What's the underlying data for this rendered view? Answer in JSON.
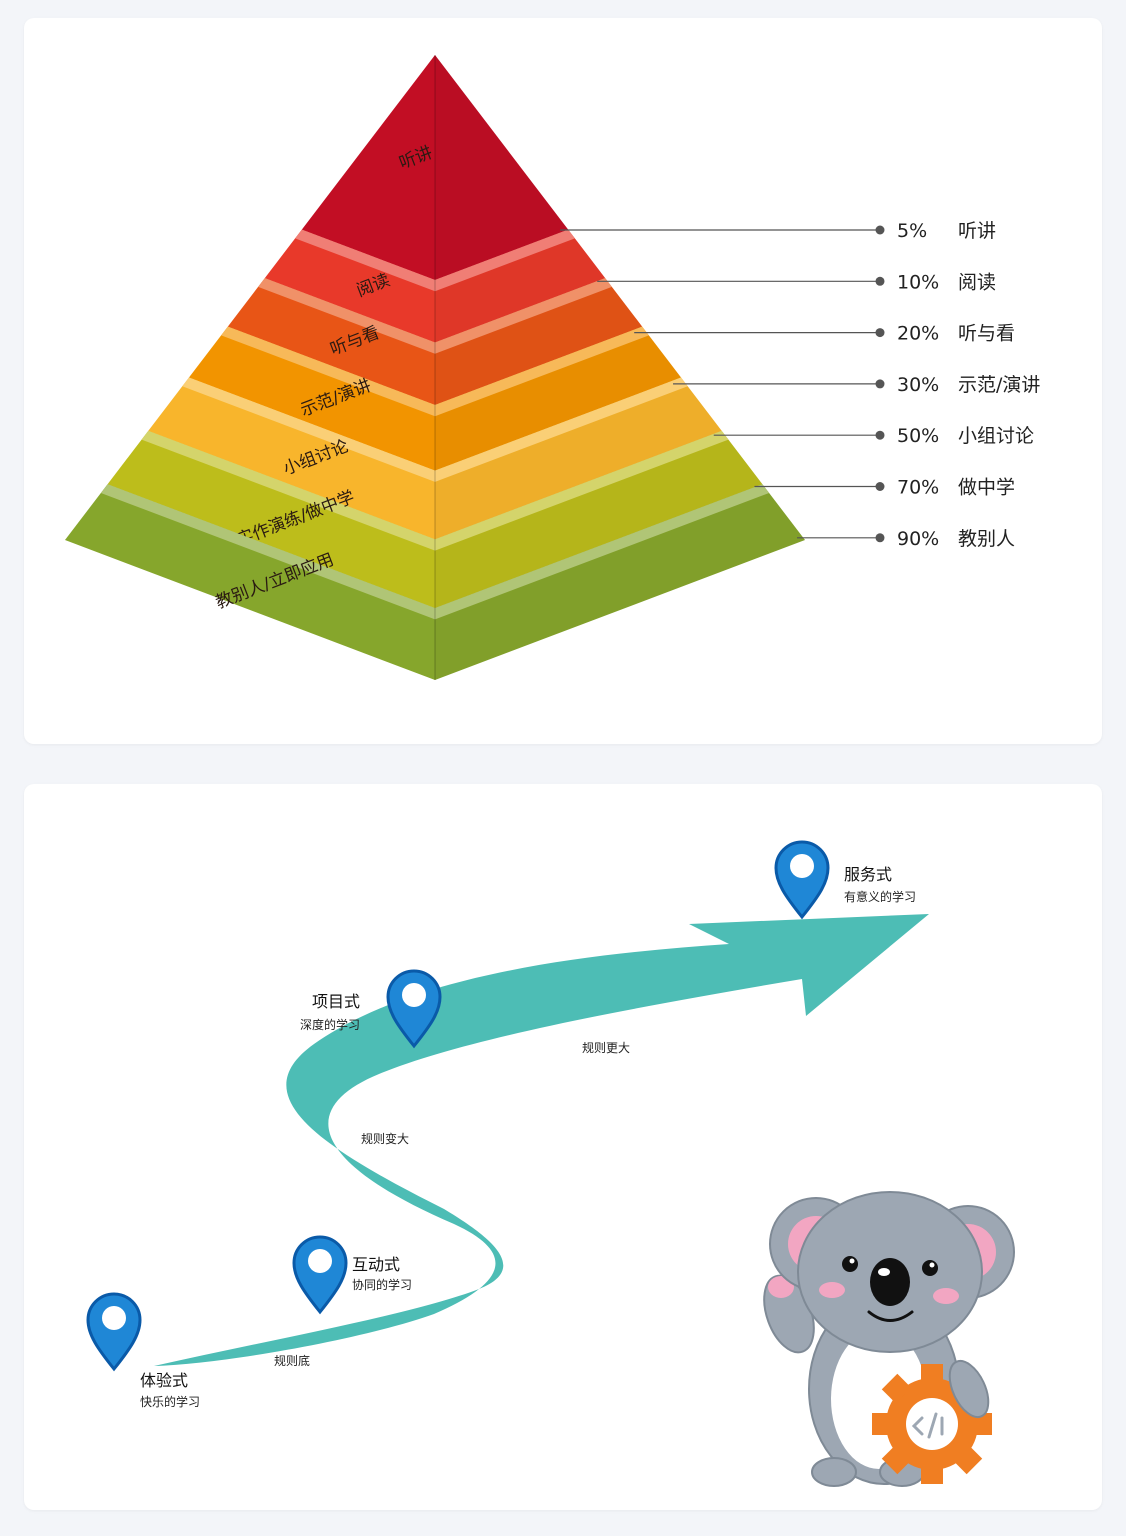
{
  "pyramid": {
    "layers": [
      {
        "label": "听讲",
        "percent": "5%",
        "name": "听讲",
        "color": "#c20e24"
      },
      {
        "label": "阅读",
        "percent": "10%",
        "name": "阅读",
        "color": "#e8392a"
      },
      {
        "label": "听与看",
        "percent": "20%",
        "name": "听与看",
        "color": "#e85516"
      },
      {
        "label": "示范/演讲",
        "percent": "30%",
        "name": "示范/演讲",
        "color": "#f29400"
      },
      {
        "label": "小组讨论",
        "percent": "50%",
        "name": "小组讨论",
        "color": "#f8b52c"
      },
      {
        "label": "实作演练/做中学",
        "percent": "70%",
        "name": "做中学",
        "color": "#bdbd1b"
      },
      {
        "label": "教别人/立即应用",
        "percent": "90%",
        "name": "教别人",
        "color": "#86a62c"
      }
    ]
  },
  "journey": {
    "steps": [
      {
        "title": "体验式",
        "subtitle": "快乐的学习"
      },
      {
        "title": "互动式",
        "subtitle": "协同的学习"
      },
      {
        "title": "项目式",
        "subtitle": "深度的学习"
      },
      {
        "title": "服务式",
        "subtitle": "有意义的学习"
      }
    ],
    "road_labels": [
      "规则底",
      "规则变大",
      "规则更大"
    ],
    "colors": {
      "road": "#4dbdb5",
      "pin": "#1f87d6",
      "pin_border": "#0a5aa8"
    }
  }
}
